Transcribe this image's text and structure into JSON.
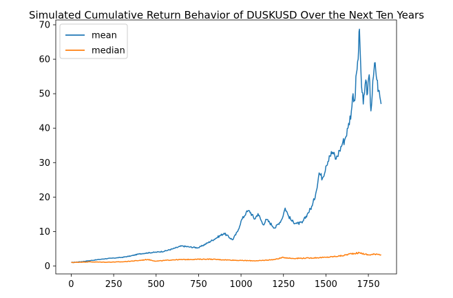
{
  "chart_data": {
    "type": "line",
    "title": "Simulated Cumulative Return Behavior of DUSKUSD Over the Next Ten Years",
    "xlabel": "",
    "ylabel": "",
    "xlim": [
      -91,
      1916
    ],
    "ylim": [
      -2.3,
      71.4
    ],
    "x_ticks": [
      0,
      250,
      500,
      750,
      1000,
      1250,
      1500,
      1750
    ],
    "y_ticks": [
      0,
      10,
      20,
      30,
      40,
      50,
      60,
      70
    ],
    "grid": false,
    "legend_position": "top-left",
    "series": [
      {
        "name": "mean",
        "color": "#1f77b4",
        "points": [
          [
            0,
            1.0
          ],
          [
            50,
            1.2
          ],
          [
            100,
            1.5
          ],
          [
            150,
            1.8
          ],
          [
            200,
            2.1
          ],
          [
            250,
            2.3
          ],
          [
            300,
            2.5
          ],
          [
            350,
            2.9
          ],
          [
            400,
            3.5
          ],
          [
            450,
            3.8
          ],
          [
            500,
            4.0
          ],
          [
            550,
            4.3
          ],
          [
            600,
            5.0
          ],
          [
            650,
            5.8
          ],
          [
            700,
            5.5
          ],
          [
            750,
            5.3
          ],
          [
            800,
            6.6
          ],
          [
            850,
            8.0
          ],
          [
            900,
            9.5
          ],
          [
            950,
            7.6
          ],
          [
            980,
            10.0
          ],
          [
            1000,
            13.0
          ],
          [
            1030,
            15.5
          ],
          [
            1050,
            16.0
          ],
          [
            1080,
            13.6
          ],
          [
            1100,
            15.2
          ],
          [
            1130,
            12.0
          ],
          [
            1150,
            13.5
          ],
          [
            1200,
            11.0
          ],
          [
            1240,
            13.5
          ],
          [
            1260,
            16.8
          ],
          [
            1280,
            14.5
          ],
          [
            1300,
            13.0
          ],
          [
            1330,
            12.3
          ],
          [
            1360,
            12.5
          ],
          [
            1390,
            15.0
          ],
          [
            1420,
            17.5
          ],
          [
            1440,
            21.0
          ],
          [
            1460,
            27.0
          ],
          [
            1480,
            25.5
          ],
          [
            1500,
            29.0
          ],
          [
            1520,
            32.0
          ],
          [
            1540,
            33.0
          ],
          [
            1560,
            31.0
          ],
          [
            1580,
            33.5
          ],
          [
            1600,
            36.0
          ],
          [
            1610,
            36.5
          ],
          [
            1630,
            40.0
          ],
          [
            1650,
            45.0
          ],
          [
            1660,
            50.0
          ],
          [
            1670,
            48.0
          ],
          [
            1680,
            56.0
          ],
          [
            1690,
            60.0
          ],
          [
            1695,
            68.0
          ],
          [
            1700,
            65.0
          ],
          [
            1710,
            52.0
          ],
          [
            1720,
            47.0
          ],
          [
            1735,
            54.0
          ],
          [
            1745,
            50.0
          ],
          [
            1755,
            55.5
          ],
          [
            1765,
            45.0
          ],
          [
            1780,
            55.0
          ],
          [
            1790,
            59.0
          ],
          [
            1800,
            54.0
          ],
          [
            1810,
            51.0
          ],
          [
            1818,
            49.0
          ],
          [
            1825,
            47.0
          ]
        ]
      },
      {
        "name": "median",
        "color": "#ff7f0e",
        "points": [
          [
            0,
            1.0
          ],
          [
            100,
            1.2
          ],
          [
            200,
            1.1
          ],
          [
            300,
            1.2
          ],
          [
            400,
            1.6
          ],
          [
            450,
            1.9
          ],
          [
            500,
            1.4
          ],
          [
            600,
            1.8
          ],
          [
            700,
            1.9
          ],
          [
            800,
            2.0
          ],
          [
            900,
            1.8
          ],
          [
            1000,
            1.6
          ],
          [
            1100,
            1.5
          ],
          [
            1200,
            1.9
          ],
          [
            1250,
            2.5
          ],
          [
            1300,
            2.2
          ],
          [
            1400,
            2.3
          ],
          [
            1500,
            2.5
          ],
          [
            1600,
            3.0
          ],
          [
            1650,
            3.6
          ],
          [
            1700,
            3.8
          ],
          [
            1750,
            3.2
          ],
          [
            1800,
            3.5
          ],
          [
            1825,
            3.3
          ]
        ]
      }
    ]
  }
}
